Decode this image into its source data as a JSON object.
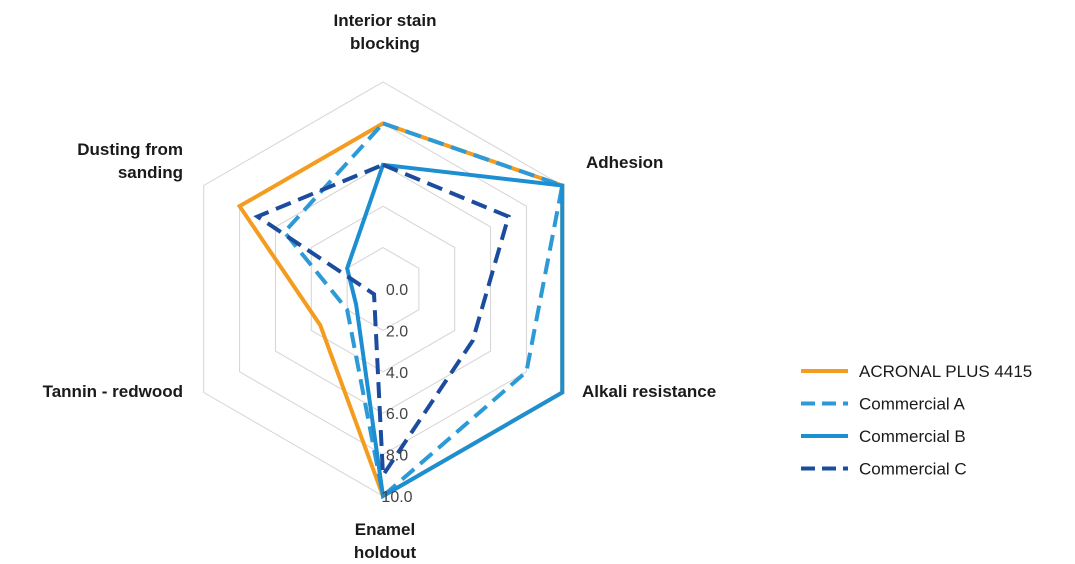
{
  "chart_data": {
    "type": "radar",
    "axes": [
      [
        "Interior stain",
        "blocking"
      ],
      [
        "Adhesion"
      ],
      [
        "Alkali resistance"
      ],
      [
        "Enamel",
        "holdout"
      ],
      [
        "Tannin - redwood"
      ],
      [
        "Dusting from",
        "sanding"
      ]
    ],
    "ticks": [
      "0.0",
      "2.0",
      "4.0",
      "6.0",
      "8.0",
      "10.0"
    ],
    "range": [
      0,
      10
    ],
    "grid": true,
    "legend_position": "right",
    "series": [
      {
        "name": "ACRONAL PLUS 4415",
        "color": "#F39C1F",
        "dash": "solid",
        "values": [
          8.0,
          10.0,
          10.0,
          10.0,
          3.5,
          8.0
        ]
      },
      {
        "name": "Commercial A",
        "color": "#2C9AD6",
        "dash": "dashed",
        "values": [
          8.0,
          10.0,
          8.0,
          10.0,
          2.0,
          5.5
        ]
      },
      {
        "name": "Commercial B",
        "color": "#1C8FD3",
        "dash": "solid",
        "values": [
          6.0,
          10.0,
          10.0,
          10.0,
          1.5,
          2.0
        ]
      },
      {
        "name": "Commercial C",
        "color": "#1B4C9E",
        "dash": "dashed",
        "values": [
          6.0,
          7.0,
          5.0,
          9.0,
          0.5,
          7.0
        ]
      }
    ]
  }
}
